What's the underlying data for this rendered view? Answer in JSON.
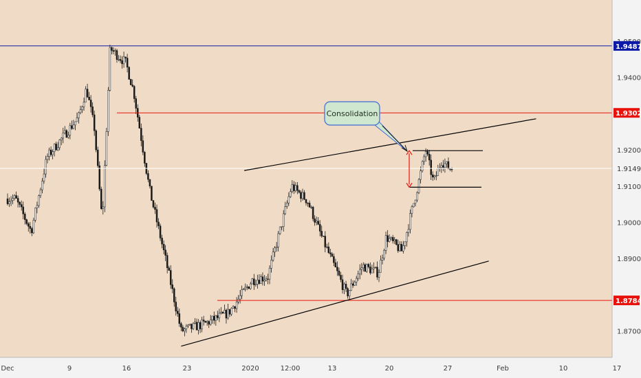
{
  "chart_data": {
    "type": "candlestick",
    "ylim": [
      1.8627,
      1.9614
    ],
    "y_ticks": [
      {
        "value": 1.95,
        "label": "1.95000"
      },
      {
        "value": 1.94,
        "label": "1.94000"
      },
      {
        "value": 1.92,
        "label": "1.92000"
      },
      {
        "value": 1.91,
        "label": "1.91000"
      },
      {
        "value": 1.9,
        "label": "1.90000"
      },
      {
        "value": 1.89,
        "label": "1.89000"
      },
      {
        "value": 1.87,
        "label": "1.87000"
      }
    ],
    "x_ticks": [
      "Dec",
      "9",
      "16",
      "23",
      "2020",
      "12:00",
      "13",
      "20",
      "27",
      "Feb",
      "10",
      "17"
    ],
    "price_tags": [
      {
        "value": 1.94872,
        "label": "1.94872",
        "color": "#0d1aa8"
      },
      {
        "value": 1.93023,
        "label": "1.93023",
        "color": "#e8120c"
      },
      {
        "value": 1.87844,
        "label": "1.87844",
        "color": "#e8120c"
      }
    ],
    "current_price": {
      "value": 1.9149,
      "label": "1.91490"
    },
    "horizontal_lines": [
      {
        "value": 1.94872,
        "color": "#0d1aa8",
        "scope": "full"
      },
      {
        "value": 1.93023,
        "color": "#e8120c",
        "scope": "from-mid-december"
      },
      {
        "value": 1.87844,
        "color": "#e8120c",
        "scope": "from-late-december"
      },
      {
        "value": 1.9149,
        "color": "#ffffff",
        "scope": "full"
      }
    ],
    "trend_lines": [
      {
        "name": "upper channel",
        "color": "#000000",
        "x_start": "2019-12-31",
        "y_start": 1.9143,
        "x_end": "2020-02-06",
        "y_end": 1.9286
      },
      {
        "name": "lower channel",
        "color": "#000000",
        "x_start": "2019-12-23",
        "y_start": 1.8658,
        "x_end": "2020-01-31",
        "y_end": 1.8893
      }
    ],
    "annotation": {
      "text": "Consolidation",
      "box_color": "#cfe6cf",
      "border_color": "#3d6ad6"
    },
    "consolidation_range": {
      "top": 1.9198,
      "bottom": 1.9097,
      "arrow_color": "#e8120c"
    },
    "series": [
      {
        "x": "2019-12-02",
        "close": 1.9065
      },
      {
        "x": "2019-12-04",
        "close": 1.8975
      },
      {
        "x": "2019-12-06",
        "close": 1.918
      },
      {
        "x": "2019-12-10",
        "close": 1.929
      },
      {
        "x": "2019-12-11",
        "close": 1.937
      },
      {
        "x": "2019-12-12",
        "close": 1.926
      },
      {
        "x": "2019-12-13",
        "close": 1.9
      },
      {
        "x": "2019-12-14",
        "close": 1.948
      },
      {
        "x": "2019-12-16",
        "close": 1.944
      },
      {
        "x": "2019-12-17",
        "close": 1.936
      },
      {
        "x": "2019-12-19",
        "close": 1.909
      },
      {
        "x": "2019-12-21",
        "close": 1.89
      },
      {
        "x": "2019-12-23",
        "close": 1.87
      },
      {
        "x": "2019-12-26",
        "close": 1.872
      },
      {
        "x": "2019-12-29",
        "close": 1.875
      },
      {
        "x": "2020-01-01",
        "close": 1.884
      },
      {
        "x": "2020-01-03",
        "close": 1.885
      },
      {
        "x": "2020-01-06",
        "close": 1.91
      },
      {
        "x": "2020-01-08",
        "close": 1.906
      },
      {
        "x": "2020-01-10",
        "close": 1.895
      },
      {
        "x": "2020-01-13",
        "close": 1.88
      },
      {
        "x": "2020-01-15",
        "close": 1.888
      },
      {
        "x": "2020-01-17",
        "close": 1.886
      },
      {
        "x": "2020-01-18",
        "close": 1.896
      },
      {
        "x": "2020-01-20",
        "close": 1.892
      },
      {
        "x": "2020-01-21",
        "close": 1.901
      },
      {
        "x": "2020-01-22",
        "close": 1.91
      },
      {
        "x": "2020-01-23",
        "close": 1.92
      },
      {
        "x": "2020-01-24",
        "close": 1.911
      },
      {
        "x": "2020-01-25",
        "close": 1.917
      },
      {
        "x": "2020-01-26",
        "close": 1.9149
      }
    ]
  }
}
